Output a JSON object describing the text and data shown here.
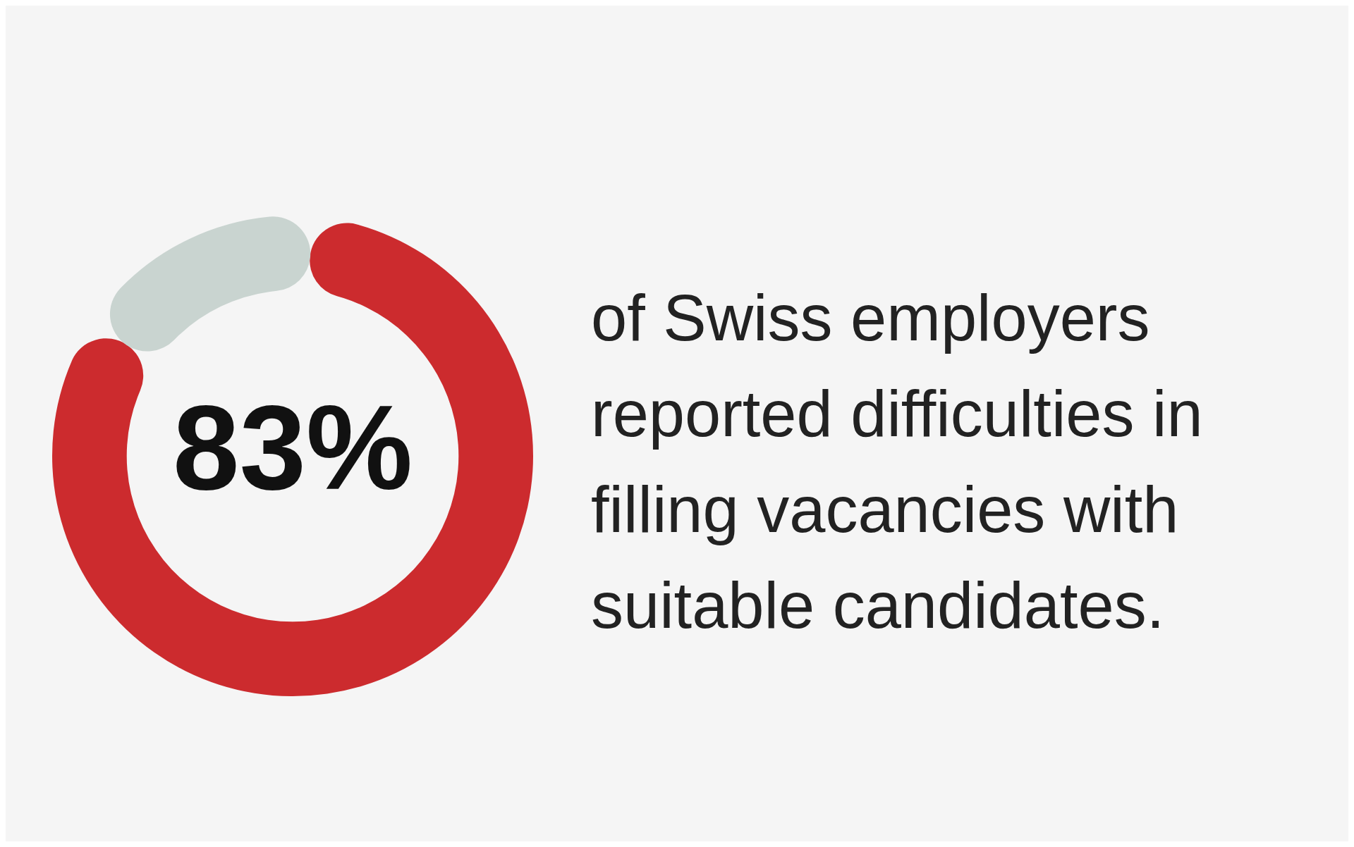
{
  "chart_data": {
    "type": "donut",
    "categories": [
      null,
      null
    ],
    "values": [
      83,
      17
    ],
    "colors": [
      "#cc2b2e",
      "#c9d4d0"
    ],
    "value_labels": [
      "83%",
      null
    ],
    "annotations": [
      "of Swiss employers reported difficulties in filling vacancies with suitable candidates."
    ]
  }
}
